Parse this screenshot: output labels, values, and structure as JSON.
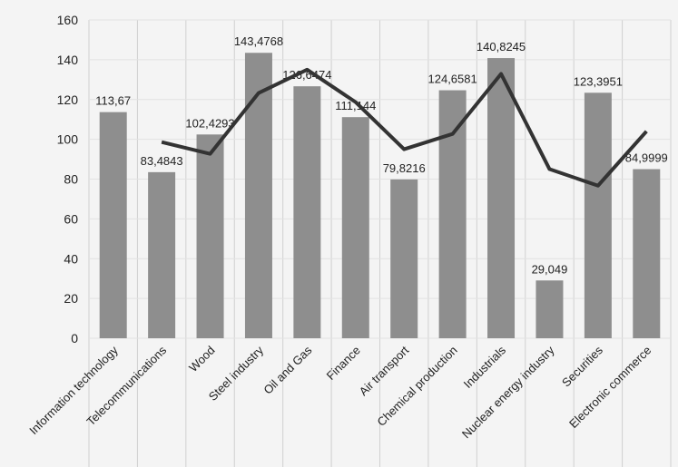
{
  "chart_data": {
    "type": "bar-line",
    "categories": [
      "Information technology",
      "Telecommunications",
      "Wood",
      "Steel industry",
      "Oil and Gas",
      "Finance",
      "Air transport",
      "Chemical production",
      "Industrials",
      "Nuclear energy industry",
      "Securities",
      "Electronic commerce"
    ],
    "series": [
      {
        "type": "bar",
        "color": "#8e8e8e",
        "values": [
          113.67,
          83.4843,
          102.4293,
          143.4768,
          126.6474,
          111.144,
          79.8216,
          124.6581,
          140.8245,
          29.049,
          123.3951,
          84.9999
        ],
        "value_labels": [
          "113,67",
          "83,4843",
          "102,4293",
          "143,4768",
          "126,6474",
          "111,144",
          "79,8216",
          "124,6581",
          "140,8245",
          "29,049",
          "123,3951",
          "84,9999"
        ]
      },
      {
        "type": "line",
        "color": "#333333",
        "values": [
          null,
          98.6,
          92.7,
          123.3,
          135,
          118.7,
          95,
          102.7,
          132.9,
          85,
          76.7,
          104
        ]
      }
    ],
    "ylim": [
      0,
      160
    ],
    "yticks": [
      0,
      20,
      40,
      60,
      80,
      100,
      120,
      140,
      160
    ],
    "grid": true
  }
}
